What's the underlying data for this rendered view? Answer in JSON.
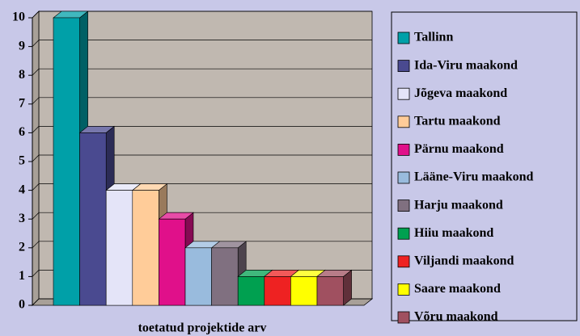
{
  "chart_data": {
    "type": "bar3d",
    "categories": [
      "toetatud projektide arv"
    ],
    "ylim": [
      0,
      10
    ],
    "yticks": [
      0,
      1,
      2,
      3,
      4,
      5,
      6,
      7,
      8,
      9,
      10
    ],
    "grid": true,
    "legend": "right",
    "series": [
      {
        "name": "Tallinn",
        "color": "#00a0a8",
        "values": [
          10
        ]
      },
      {
        "name": "Ida-Viru maakond",
        "color": "#4a4a90",
        "values": [
          6
        ]
      },
      {
        "name": "Jõgeva maakond",
        "color": "#e4e4f8",
        "values": [
          4
        ]
      },
      {
        "name": "Tartu maakond",
        "color": "#ffcc99",
        "values": [
          4
        ]
      },
      {
        "name": "Pärnu maakond",
        "color": "#e0108a",
        "values": [
          3
        ]
      },
      {
        "name": "Lääne-Viru maakond",
        "color": "#99bbdd",
        "values": [
          2
        ]
      },
      {
        "name": "Harju maakond",
        "color": "#807080",
        "values": [
          2
        ]
      },
      {
        "name": "Hiiu maakond",
        "color": "#00a050",
        "values": [
          1
        ]
      },
      {
        "name": "Viljandi maakond",
        "color": "#ee2222",
        "values": [
          1
        ]
      },
      {
        "name": "Saare maakond",
        "color": "#ffff00",
        "values": [
          1
        ]
      },
      {
        "name": "Võru maakond",
        "color": "#a05060",
        "values": [
          1
        ]
      }
    ]
  }
}
